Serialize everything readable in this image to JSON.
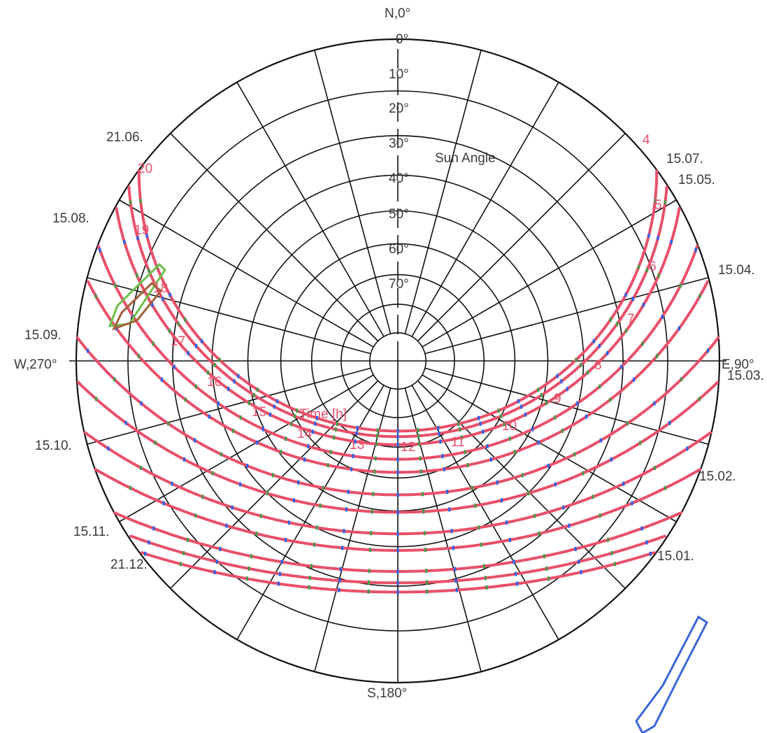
{
  "chart_data": {
    "type": "polar-sunpath",
    "cardinal_labels": {
      "north": "N,0°",
      "east": "E,90°",
      "south": "S,180°",
      "west": "W,270°"
    },
    "elevation_labels": [
      "0°",
      "10°",
      "20°",
      "30°",
      "40°",
      "50°",
      "60°",
      "70°"
    ],
    "sun_angle_label": "Sun Angle",
    "time_axis_label": "Time [h]",
    "azimuth_grid_step_deg": 15,
    "elevation_grid_step_deg": 10,
    "colors": {
      "grid": "#111111",
      "sun_path": "#e8506a",
      "hour_marker_blue": "#2f63e8",
      "hour_marker_green": "#4a9a4a",
      "obstruction_green": "#6cc04a",
      "obstruction_brown": "#a0603a",
      "outline_blue": "#3a66d8"
    },
    "date_labels": {
      "left": [
        "21.06.",
        "15.08.",
        "15.09.",
        "15.10.",
        "15.11.",
        "21.12."
      ],
      "right": [
        "15.07.",
        "15.05.",
        "15.04.",
        "15.03.",
        "15.02.",
        "15.01."
      ]
    },
    "hour_labels": [
      "4",
      "5",
      "6",
      "7",
      "8",
      "9",
      "10",
      "11",
      "12",
      "13",
      "14",
      "15",
      "16",
      "17",
      "18",
      "19",
      "20"
    ],
    "series": [
      {
        "name": "21.06.",
        "declination_deg": 23.4
      },
      {
        "name": "15.07.",
        "declination_deg": 21.5
      },
      {
        "name": "15.05.",
        "declination_deg": 18.8
      },
      {
        "name": "15.08.",
        "declination_deg": 14.0
      },
      {
        "name": "15.04.",
        "declination_deg": 9.8
      },
      {
        "name": "15.09.",
        "declination_deg": 2.8
      },
      {
        "name": "15.03.",
        "declination_deg": -2.4
      },
      {
        "name": "15.10.",
        "declination_deg": -8.5
      },
      {
        "name": "15.02.",
        "declination_deg": -13.0
      },
      {
        "name": "15.11.",
        "declination_deg": -18.4
      },
      {
        "name": "15.01.",
        "declination_deg": -21.2
      },
      {
        "name": "21.12.",
        "declination_deg": -23.4
      }
    ]
  }
}
